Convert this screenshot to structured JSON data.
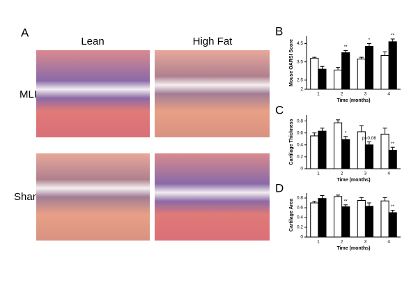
{
  "figure_label": "A",
  "image_columns": [
    "Lean",
    "High Fat"
  ],
  "image_rows": [
    "MLI",
    "Sham"
  ],
  "chart_data": [
    {
      "type": "bar",
      "panel": "B",
      "ylabel": "Mouse OARSI Score",
      "xlabel": "Time (months)",
      "categories": [
        "1",
        "2",
        "3",
        "4"
      ],
      "series": [
        {
          "color": "#ffffff",
          "values": [
            3.7,
            3.05,
            3.65,
            3.85
          ],
          "errors": [
            0.05,
            0.15,
            0.1,
            0.2
          ]
        },
        {
          "color": "#000000",
          "values": [
            3.1,
            4.0,
            4.35,
            4.6
          ],
          "errors": [
            0.15,
            0.12,
            0.15,
            0.15
          ],
          "significance": [
            null,
            "**",
            "*",
            "**"
          ]
        }
      ],
      "ylim": [
        2,
        4.9
      ],
      "yticks": [
        2,
        2.5,
        3.5,
        4.5
      ]
    },
    {
      "type": "bar",
      "panel": "C",
      "ylabel": "Cartilage Thickness",
      "xlabel": "Time (months)",
      "categories": [
        "1",
        "2",
        "3",
        "4"
      ],
      "series": [
        {
          "color": "#ffffff",
          "values": [
            0.55,
            0.77,
            0.62,
            0.58
          ],
          "errors": [
            0.05,
            0.05,
            0.1,
            0.1
          ]
        },
        {
          "color": "#000000",
          "values": [
            0.63,
            0.49,
            0.4,
            0.31
          ],
          "errors": [
            0.05,
            0.05,
            0.05,
            0.05
          ],
          "significance": [
            null,
            "*",
            "p<0.06",
            "**"
          ]
        }
      ],
      "ylim": [
        0,
        0.9
      ],
      "yticks": [
        0,
        0.2,
        0.4,
        0.6,
        0.8
      ]
    },
    {
      "type": "bar",
      "panel": "D",
      "ylabel": "Cartilage Area",
      "xlabel": "Time (months)",
      "categories": [
        "1",
        "2",
        "3",
        "4"
      ],
      "series": [
        {
          "color": "#ffffff",
          "values": [
            0.7,
            0.83,
            0.75,
            0.74
          ],
          "errors": [
            0.03,
            0.03,
            0.06,
            0.07
          ]
        },
        {
          "color": "#000000",
          "values": [
            0.79,
            0.62,
            0.63,
            0.5
          ],
          "errors": [
            0.06,
            0.04,
            0.07,
            0.05
          ],
          "significance": [
            null,
            "**",
            null,
            "**"
          ]
        }
      ],
      "ylim": [
        0,
        0.9
      ],
      "yticks": [
        0,
        0.2,
        0.4,
        0.6,
        0.8
      ]
    }
  ]
}
